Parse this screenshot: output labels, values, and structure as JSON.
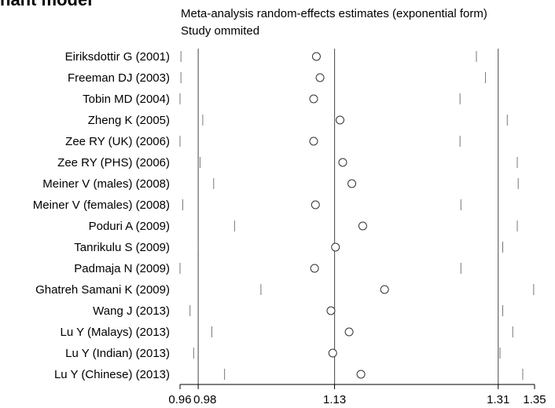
{
  "header": {
    "heading": "nant model",
    "title": "Meta-analysis random-effects estimates (exponential form)",
    "subtitle": "Study ommited"
  },
  "chart_data": {
    "type": "forest",
    "title": "Meta-analysis random-effects estimates (exponential form)",
    "subtitle": "Study ommited",
    "x_ticks": [
      0.96,
      0.98,
      1.13,
      1.31,
      1.35
    ],
    "x_tick_labels": [
      "0.96",
      "0.98",
      "1.13",
      "1.31",
      "1.35"
    ],
    "xlim": [
      0.96,
      1.35
    ],
    "reference_lines": [
      0.98,
      1.13,
      1.31
    ],
    "studies": [
      {
        "label": "Eiriksdottir G (2001)",
        "lower": 0.961,
        "estimate": 1.11,
        "upper": 1.286
      },
      {
        "label": "Freeman DJ (2003)",
        "lower": 0.961,
        "estimate": 1.114,
        "upper": 1.296
      },
      {
        "label": "Tobin MD (2004)",
        "lower": 0.96,
        "estimate": 1.107,
        "upper": 1.268
      },
      {
        "label": "Zheng K (2005)",
        "lower": 0.985,
        "estimate": 1.136,
        "upper": 1.32
      },
      {
        "label": "Zee RY (UK) (2006)",
        "lower": 0.96,
        "estimate": 1.107,
        "upper": 1.268
      },
      {
        "label": "Zee RY (PHS) (2006)",
        "lower": 0.982,
        "estimate": 1.139,
        "upper": 1.331
      },
      {
        "label": "Meiner V (males) (2008)",
        "lower": 0.997,
        "estimate": 1.149,
        "upper": 1.332
      },
      {
        "label": "Meiner V (females) (2008)",
        "lower": 0.963,
        "estimate": 1.109,
        "upper": 1.269
      },
      {
        "label": "Poduri A (2009)",
        "lower": 1.02,
        "estimate": 1.161,
        "upper": 1.331
      },
      {
        "label": "Tanrikulu S (2009)",
        "lower": 0.98,
        "estimate": 1.131,
        "upper": 1.315
      },
      {
        "label": "Padmaja N (2009)",
        "lower": 0.96,
        "estimate": 1.108,
        "upper": 1.269
      },
      {
        "label": "Ghatreh Samani K (2009)",
        "lower": 1.049,
        "estimate": 1.185,
        "upper": 1.349
      },
      {
        "label": "Wang J (2013)",
        "lower": 0.971,
        "estimate": 1.126,
        "upper": 1.315
      },
      {
        "label": "Lu Y (Malays) (2013)",
        "lower": 0.995,
        "estimate": 1.146,
        "upper": 1.326
      },
      {
        "label": "Lu Y (Indian) (2013)",
        "lower": 0.975,
        "estimate": 1.128,
        "upper": 1.312
      },
      {
        "label": "Lu Y (Chinese) (2013)",
        "lower": 1.009,
        "estimate": 1.159,
        "upper": 1.337
      }
    ]
  }
}
